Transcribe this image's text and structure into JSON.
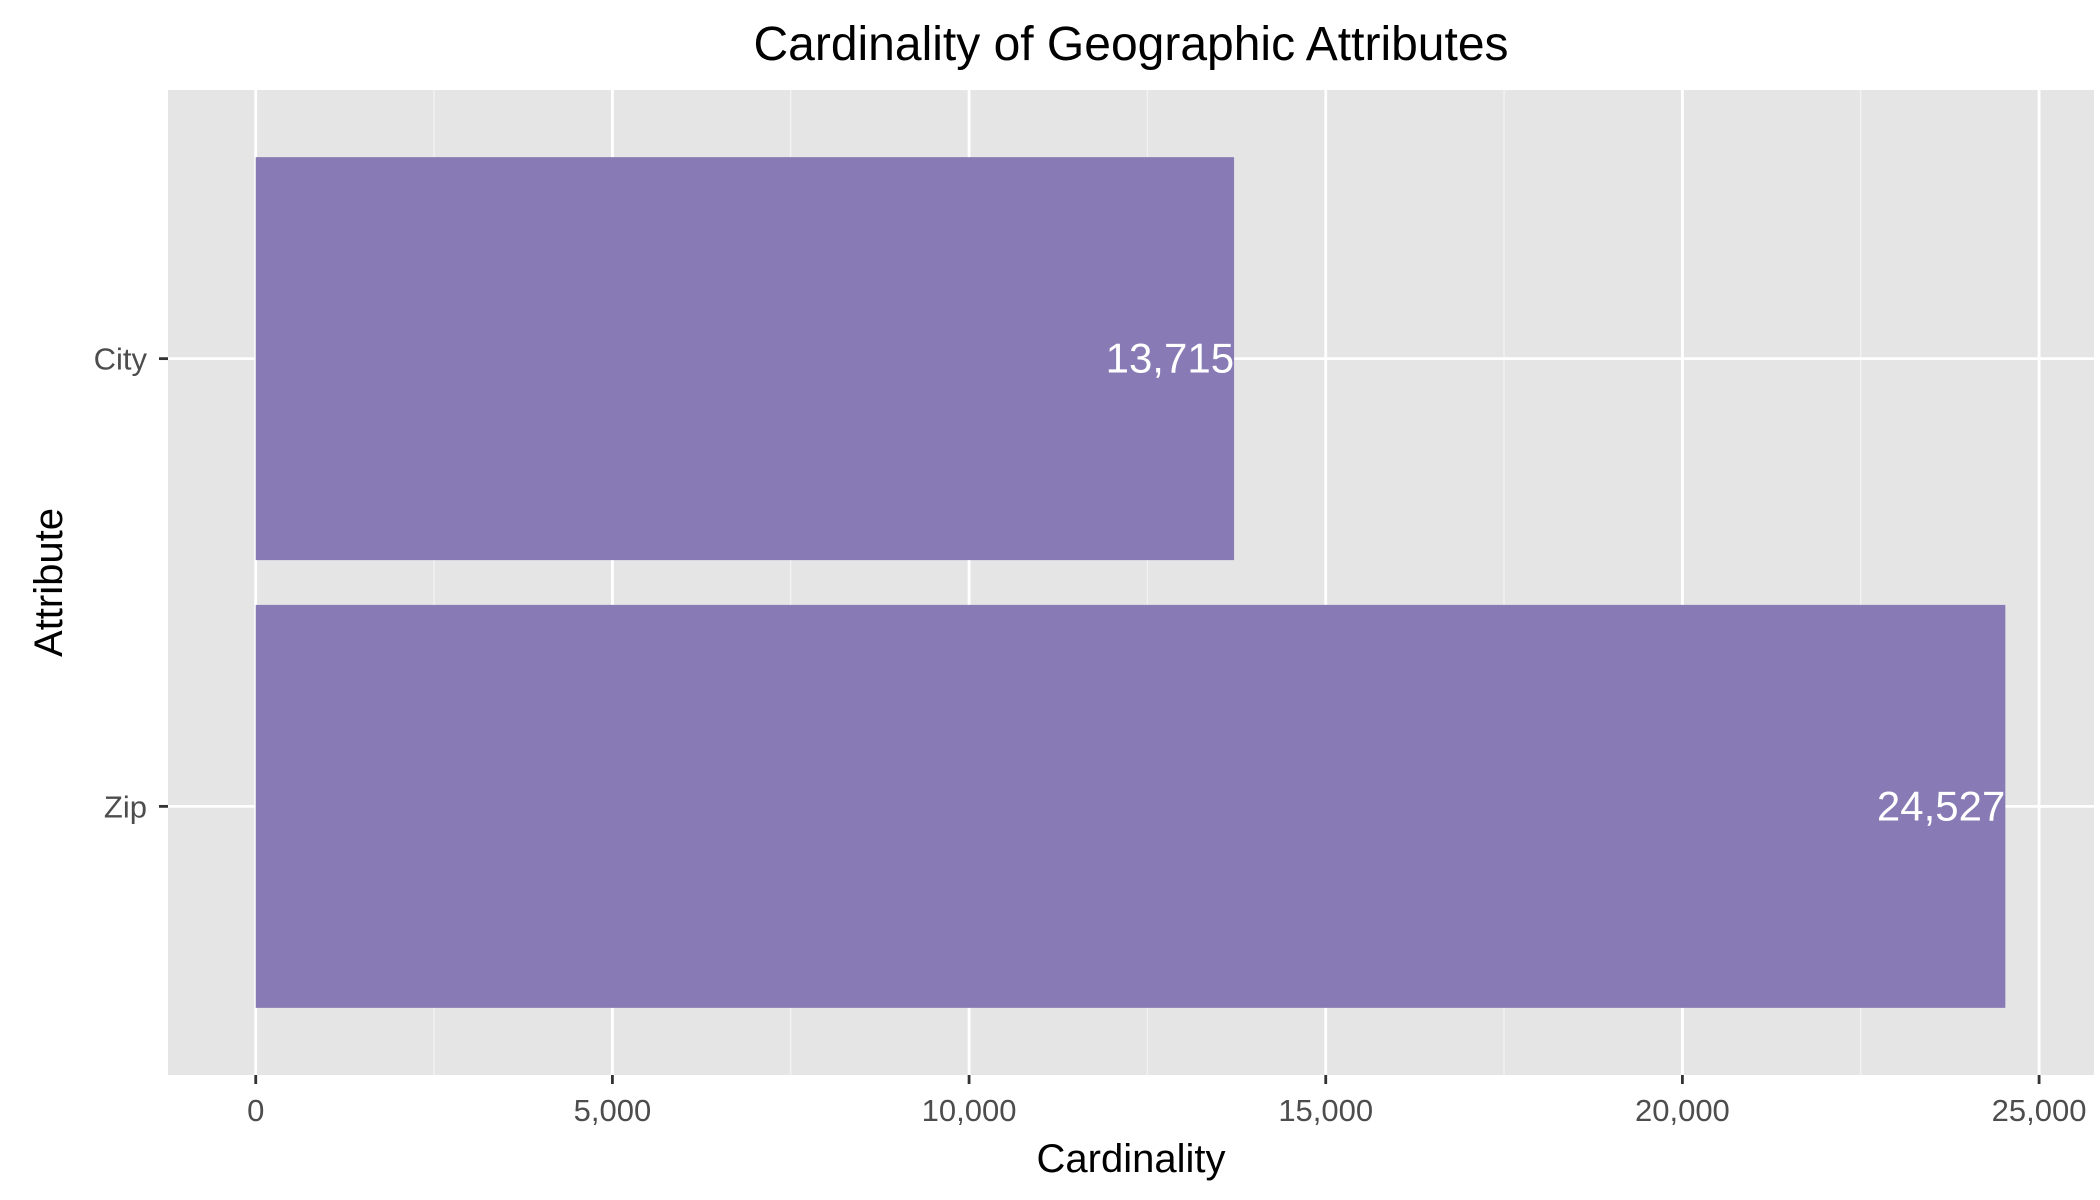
{
  "chart_data": {
    "type": "bar",
    "orientation": "horizontal",
    "title": "Cardinality of Geographic Attributes",
    "xlabel": "Cardinality",
    "ylabel": "Attribute",
    "categories": [
      "City",
      "Zip"
    ],
    "values": [
      13715,
      24527
    ],
    "data_labels": [
      "13,715",
      "24,527"
    ],
    "xlim": [
      -1230,
      25770
    ],
    "xticks": [
      0,
      5000,
      10000,
      15000,
      20000,
      25000
    ],
    "xtick_labels": [
      "0",
      "5,000",
      "10,000",
      "15,000",
      "20,000",
      "25,000"
    ],
    "x_minor_ticks": [
      2500,
      7500,
      12500,
      17500,
      22500
    ],
    "grid": true,
    "legend": "none",
    "colors": {
      "bar": "#877AB5",
      "panel_background": "#E5E5E5",
      "grid_major": "#FFFFFF",
      "grid_minor": "#F2F2F2",
      "data_label": "#FFFFFF"
    }
  }
}
